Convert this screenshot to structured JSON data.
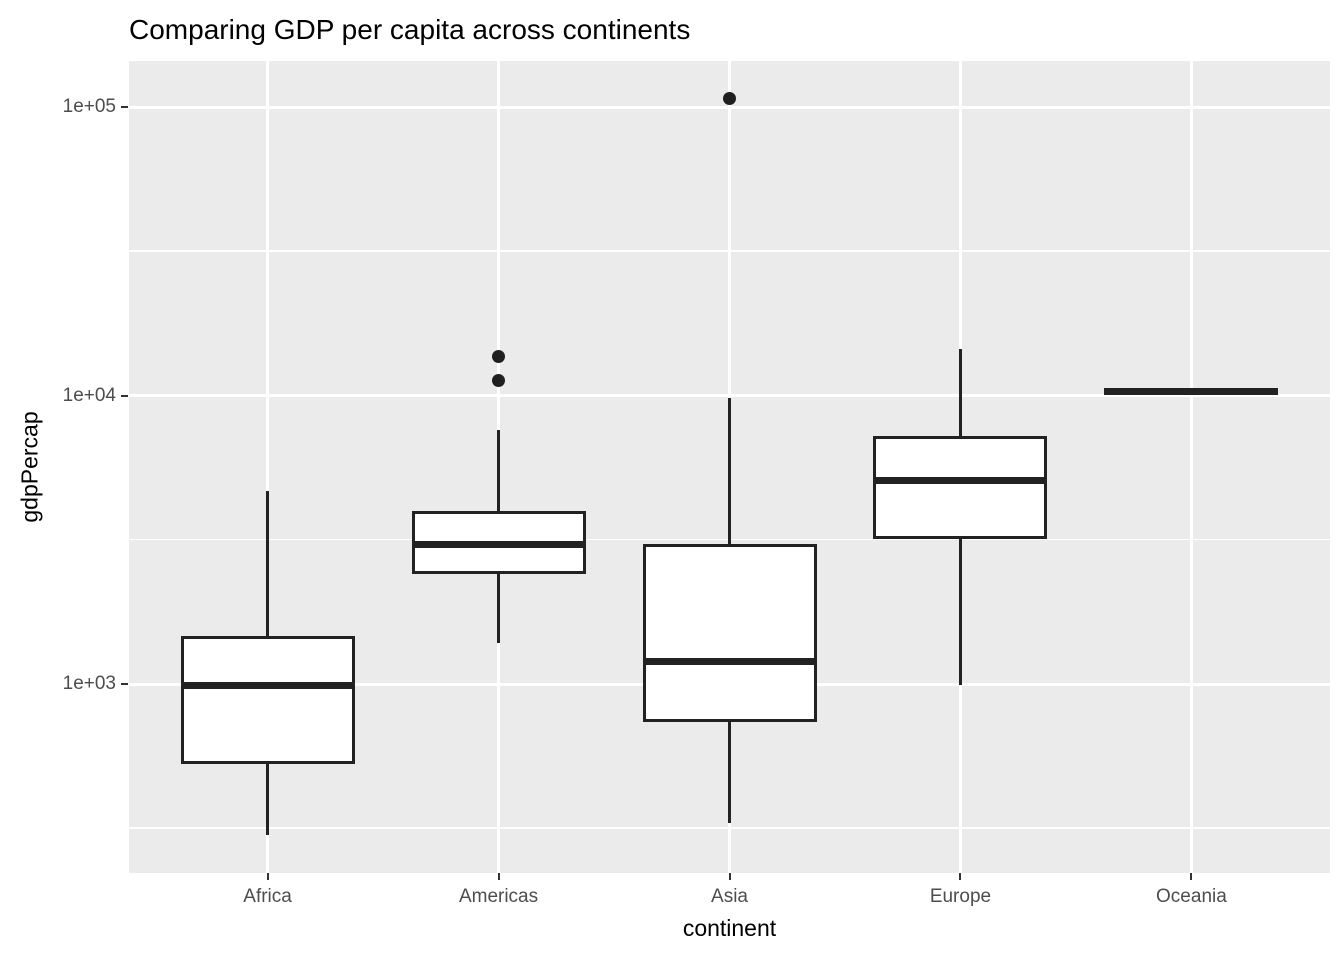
{
  "title": "Comparing GDP per capita across continents",
  "x_axis": {
    "label": "continent",
    "tick_labels": [
      "Africa",
      "Americas",
      "Asia",
      "Europe",
      "Oceania"
    ]
  },
  "y_axis": {
    "label": "gdpPercap",
    "scale": "log10",
    "ticks": [
      {
        "label": "1e+03",
        "value": 1000
      },
      {
        "label": "1e+04",
        "value": 10000
      },
      {
        "label": "1e+05",
        "value": 100000
      }
    ],
    "minor_tick_values": [
      316.23,
      3162.3,
      31622.8
    ]
  },
  "chart_data": {
    "type": "boxplot",
    "title": "Comparing GDP per capita across continents",
    "xlabel": "continent",
    "ylabel": "gdpPercap",
    "y_scale": "log10",
    "ylim": [
      220,
      144000
    ],
    "grid": true,
    "legend": "none",
    "categories": [
      "Africa",
      "Americas",
      "Asia",
      "Europe",
      "Oceania"
    ],
    "series": [
      {
        "category": "Africa",
        "whisker_low": 300,
        "q1": 535,
        "median": 985,
        "q3": 1450,
        "whisker_high": 4650,
        "outliers": []
      },
      {
        "category": "Americas",
        "whisker_low": 1390,
        "q1": 2425,
        "median": 3055,
        "q3": 3915,
        "whisker_high": 7600,
        "outliers": [
          11250,
          13700
        ]
      },
      {
        "category": "Asia",
        "whisker_low": 330,
        "q1": 750,
        "median": 1200,
        "q3": 3010,
        "whisker_high": 9800,
        "outliers": [
          107000
        ]
      },
      {
        "category": "Europe",
        "whisker_low": 995,
        "q1": 3230,
        "median": 5090,
        "q3": 7180,
        "whisker_high": 14500,
        "outliers": []
      },
      {
        "category": "Oceania",
        "whisker_low": 10040,
        "q1": 10170,
        "median": 10300,
        "q3": 10430,
        "whisker_high": 10560,
        "outliers": []
      }
    ]
  },
  "colors": {
    "figure_background": "#FFFFFF",
    "panel_background": "#EBEBEB",
    "grid_line": "#FFFFFF",
    "box_stroke": "#222222",
    "box_fill": "#FFFFFF",
    "outlier_dot": "#1F1F1F",
    "axis_text": "#4D4D4D",
    "title_text": "#000000",
    "tick_mark": "#333333"
  }
}
